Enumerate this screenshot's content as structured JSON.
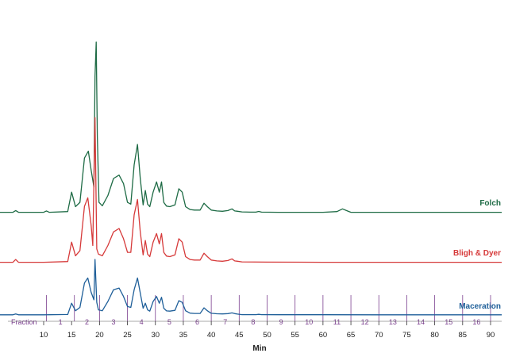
{
  "chart_data": {
    "type": "line",
    "title": "",
    "xlabel": "Min",
    "ylabel": "",
    "xlim": [
      2,
      92
    ],
    "grid": false,
    "x_ticks": [
      10,
      15,
      20,
      25,
      30,
      35,
      40,
      45,
      50,
      55,
      60,
      65,
      70,
      75,
      80,
      85,
      90
    ],
    "x_tick_labels": [
      "10",
      "15",
      "20",
      "25",
      "30",
      "35",
      "40",
      "45",
      "50",
      "55",
      "60",
      "65",
      "70",
      "75",
      "80",
      "85",
      "90"
    ],
    "fractions": {
      "label": "Fraction",
      "boundaries": [
        10.5,
        15.5,
        20,
        25,
        30,
        35,
        40,
        45,
        50,
        55,
        60,
        65,
        70,
        75,
        80,
        85,
        90
      ],
      "labels": [
        "1",
        "2",
        "3",
        "4",
        "5",
        "6",
        "7",
        "8",
        "9",
        "10",
        "11",
        "12",
        "13",
        "14",
        "15",
        "16"
      ],
      "label_x": [
        13,
        17.75,
        22.5,
        27.5,
        32.5,
        37.5,
        42.5,
        47.5,
        52.5,
        57.5,
        62.5,
        67.5,
        72.5,
        77.5,
        82.5,
        87.5
      ],
      "color": "#7b3f8f"
    },
    "series": [
      {
        "name": "Folch",
        "color": "#1e6b45",
        "baseline": 0,
        "x": [
          2,
          4.5,
          5,
          5.5,
          8,
          10,
          10.5,
          11,
          14.3,
          15,
          15.7,
          16.5,
          17.3,
          18,
          18.5,
          19,
          19.2,
          19.4,
          19.6,
          19.9,
          20.5,
          21.5,
          22.5,
          23.5,
          24.3,
          25,
          25.6,
          26.2,
          26.8,
          27.3,
          27.8,
          28.2,
          28.6,
          29,
          29.6,
          30.2,
          30.7,
          31.1,
          31.5,
          32,
          32.6,
          33.5,
          34.2,
          34.8,
          35.4,
          36.2,
          37,
          38,
          38.7,
          39.3,
          40,
          41,
          42,
          43,
          43.7,
          44.2,
          44.7,
          45.5,
          47,
          48,
          48.5,
          49,
          52,
          56,
          60,
          62.5,
          63.5,
          64.2,
          65,
          67,
          75,
          85,
          92
        ],
        "values": [
          0.2,
          0.2,
          1.2,
          0.2,
          0.2,
          0.2,
          1.0,
          0.2,
          0.6,
          12,
          3.5,
          6,
          32,
          36,
          25,
          15,
          80,
          100,
          45,
          6,
          4,
          10,
          20,
          22,
          17,
          6,
          5,
          28,
          40,
          20,
          4.5,
          13,
          5,
          3.5,
          12,
          18,
          12,
          18,
          6,
          3.8,
          3.5,
          4.5,
          14,
          12,
          3.5,
          1.8,
          1.5,
          1.5,
          5.5,
          3.5,
          1.5,
          1,
          0.8,
          1.2,
          2.2,
          1.0,
          0.8,
          0.4,
          0.3,
          0.3,
          0.7,
          0.3,
          0.2,
          0.2,
          0.2,
          0.6,
          2.2,
          1.2,
          0.2,
          0.2,
          0.2,
          0.2,
          0.2
        ]
      },
      {
        "name": "Bligh & Dyer",
        "color": "#d63a3a",
        "baseline": 0,
        "x": [
          2,
          4.5,
          5,
          5.5,
          10,
          14.3,
          15,
          15.7,
          16.5,
          17.3,
          17.9,
          18.5,
          18.8,
          19.2,
          19.5,
          19.8,
          20.5,
          21.5,
          22.5,
          23.5,
          24.3,
          25,
          25.6,
          26.2,
          26.8,
          27.3,
          27.8,
          28.2,
          28.6,
          29,
          29.6,
          30.2,
          30.7,
          31.1,
          31.5,
          32,
          32.6,
          33.5,
          34.2,
          34.8,
          35.4,
          36.2,
          37,
          38,
          38.7,
          39.3,
          40,
          41,
          42,
          43,
          43.7,
          44.2,
          44.7,
          45.5,
          50,
          60,
          70,
          80,
          92
        ],
        "values": [
          0.2,
          0.2,
          1.8,
          0.2,
          0.2,
          0.6,
          12,
          4,
          7,
          33,
          38,
          22,
          10,
          85,
          8,
          5,
          4,
          10,
          18,
          20,
          14,
          6,
          6,
          28,
          37,
          18,
          4.5,
          13,
          5,
          3.5,
          12,
          17,
          11,
          17,
          6,
          3.8,
          3.5,
          4.5,
          14,
          12,
          3.5,
          1.8,
          1.5,
          1.5,
          5.5,
          3.5,
          1.5,
          1,
          0.8,
          1.2,
          2.2,
          1.0,
          0.8,
          0.4,
          0.3,
          0.2,
          0.2,
          0.2,
          0.2
        ]
      },
      {
        "name": "Maceration",
        "color": "#1f5f99",
        "baseline": 0,
        "x": [
          2,
          4.5,
          5,
          5.5,
          10,
          14.3,
          15,
          15.7,
          16.5,
          17.3,
          17.9,
          18.5,
          19,
          19.2,
          19.5,
          19.8,
          20.5,
          21.5,
          22.5,
          23.5,
          24.3,
          25,
          25.6,
          26.2,
          26.8,
          27.3,
          27.8,
          28.2,
          28.6,
          29,
          29.6,
          30.2,
          30.7,
          31.1,
          31.5,
          32,
          32.6,
          33.5,
          34.2,
          34.8,
          35.4,
          36.2,
          37,
          38,
          38.7,
          39.3,
          40,
          41,
          42,
          43,
          43.7,
          44.2,
          44.7,
          45.5,
          47,
          48,
          48.5,
          49,
          52,
          60,
          70,
          80,
          92
        ],
        "values": [
          0.2,
          0.2,
          1.2,
          0.2,
          0.2,
          0.6,
          14,
          5,
          9,
          38,
          44,
          27,
          18,
          66,
          15,
          6,
          5,
          16,
          30,
          32,
          22,
          10,
          9,
          30,
          44,
          26,
          8,
          14,
          6,
          4.5,
          16,
          22,
          14,
          21,
          8,
          4.8,
          4.5,
          5.5,
          17,
          15,
          5,
          2.2,
          1.8,
          1.8,
          8.5,
          5,
          2,
          1.4,
          1.2,
          1.6,
          2.5,
          1.6,
          1,
          0.4,
          0.4,
          0.4,
          0.8,
          0.4,
          0.3,
          0.3,
          0.2,
          0.2,
          0.2
        ]
      }
    ]
  }
}
